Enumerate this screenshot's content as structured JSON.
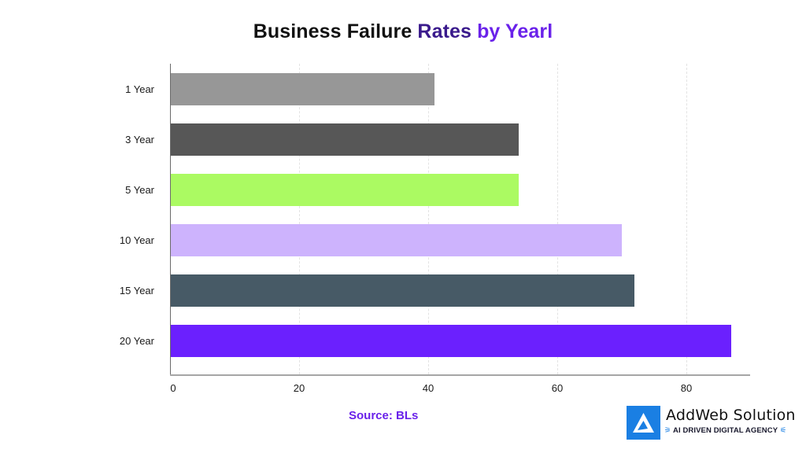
{
  "title": {
    "part1": "Business Failure ",
    "part2": "Rates ",
    "part3": "by Yearl"
  },
  "source": "Source: BLs",
  "logo": {
    "name": "AddWeb Solution",
    "tagline": "AI DRIVEN DIGITAL AGENCY",
    "signal_left": "⚞",
    "signal_right": "⚟",
    "mark_color": "#1a7fe3"
  },
  "chart_data": {
    "type": "bar",
    "orientation": "horizontal",
    "title": "Business Failure Rates by Yearl",
    "xlabel": "",
    "ylabel": "",
    "categories": [
      "1 Year",
      "3 Year",
      "5 Year",
      "10 Year",
      "15 Year",
      "20 Year"
    ],
    "values": [
      41,
      54,
      54,
      70,
      72,
      87
    ],
    "colors": [
      "#979797",
      "#575757",
      "#abfa62",
      "#cdb3fd",
      "#475a66",
      "#6b20fe"
    ],
    "xlim": [
      0,
      90
    ],
    "xticks": [
      "0",
      "20",
      "40",
      "60",
      "80"
    ],
    "grid": "vertical dashed",
    "legend": "none",
    "annotation": "Source: BLs"
  }
}
